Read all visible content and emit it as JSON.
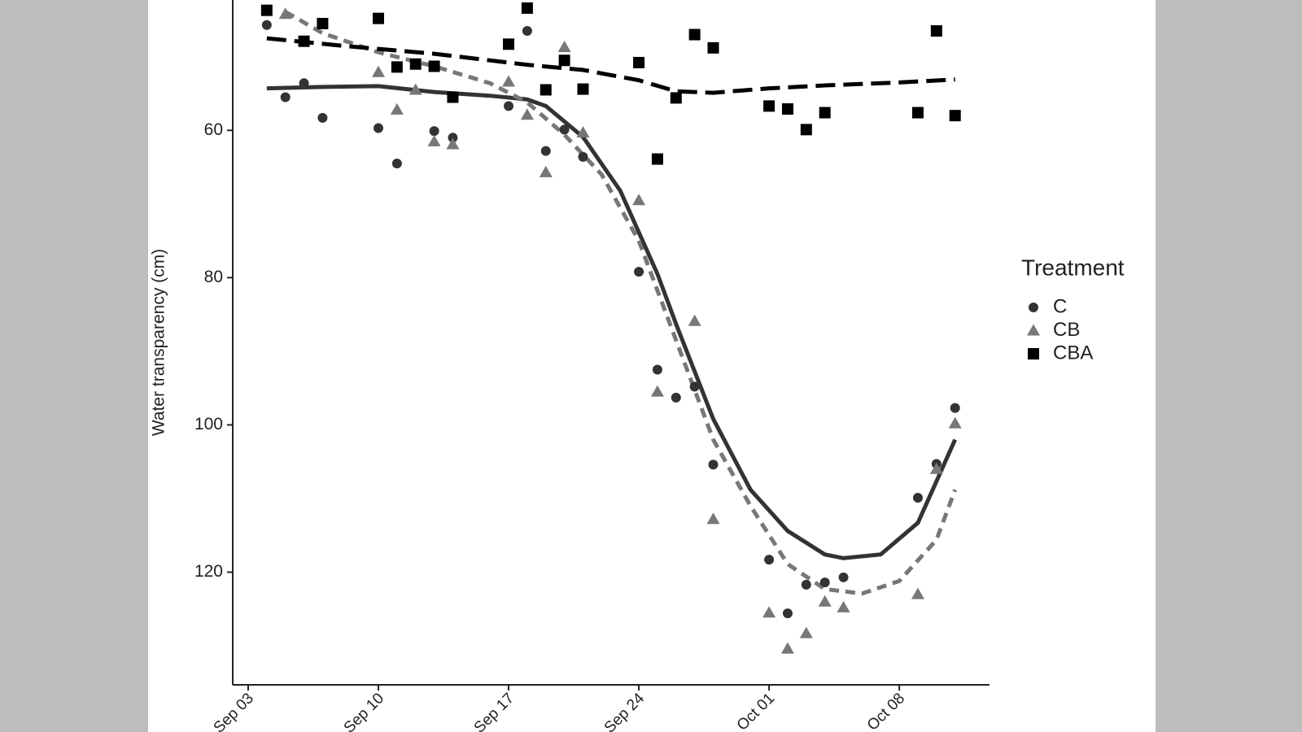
{
  "chart_data": {
    "type": "scatter",
    "y_label": "Water transparency (cm)",
    "legend_title": "Treatment",
    "legend_position": "right",
    "y_reversed": true,
    "xlim": [
      -0.83,
      39.85
    ],
    "ylim": [
      42.3,
      135.3
    ],
    "xticks": [
      {
        "value": 0,
        "label": "Sep 03"
      },
      {
        "value": 7,
        "label": "Sep 10"
      },
      {
        "value": 14,
        "label": "Sep 17"
      },
      {
        "value": 21,
        "label": "Sep 24"
      },
      {
        "value": 28,
        "label": "Oct 01"
      },
      {
        "value": 35,
        "label": "Oct 08"
      }
    ],
    "yticks": [
      60,
      80,
      100,
      120
    ],
    "series": [
      {
        "name": "C",
        "color": "#333333",
        "marker": "circle",
        "dash": "none",
        "x": [
          1,
          2,
          3,
          4,
          7,
          8,
          10,
          11,
          14,
          15,
          16,
          17,
          18,
          21,
          22,
          23,
          24,
          25,
          28,
          29,
          30,
          31,
          32,
          36,
          37,
          38
        ],
        "values": [
          45.7,
          55.5,
          53.6,
          58.3,
          59.7,
          64.5,
          60.1,
          61.0,
          56.7,
          46.5,
          62.8,
          59.9,
          63.6,
          79.2,
          92.5,
          96.3,
          94.8,
          105.4,
          118.3,
          125.6,
          121.7,
          121.4,
          120.7,
          109.9,
          105.3,
          97.7
        ],
        "smooth": {
          "x": [
            1,
            4,
            7,
            10,
            13,
            15,
            16,
            18,
            20,
            22,
            23,
            25,
            27,
            29,
            31,
            32,
            34,
            36,
            38
          ],
          "values": [
            54.3,
            54.1,
            54.0,
            54.8,
            55.3,
            55.8,
            56.7,
            60.9,
            68.2,
            79.5,
            86.3,
            99.2,
            108.8,
            114.4,
            117.6,
            118.1,
            117.6,
            113.3,
            102.0
          ]
        }
      },
      {
        "name": "CB",
        "color": "#777777",
        "marker": "triangle",
        "dash": "12 8",
        "x": [
          2,
          7,
          8,
          9,
          10,
          11,
          14,
          15,
          16,
          17,
          18,
          21,
          22,
          24,
          25,
          28,
          29,
          30,
          31,
          32,
          36,
          37,
          38
        ],
        "values": [
          44.2,
          52.1,
          57.2,
          54.5,
          61.5,
          61.9,
          53.4,
          57.9,
          65.7,
          48.7,
          60.3,
          69.5,
          95.5,
          85.9,
          112.8,
          125.5,
          130.4,
          128.3,
          124.0,
          124.8,
          123.0,
          106.0,
          99.8
        ],
        "smooth": {
          "x": [
            2,
            4,
            7,
            10,
            13,
            15,
            17,
            19,
            21,
            23,
            25,
            27,
            29,
            31,
            33,
            35,
            37,
            38
          ],
          "values": [
            43.9,
            46.8,
            49.4,
            51.3,
            53.6,
            56.2,
            60.6,
            66.0,
            75.0,
            88.5,
            102.0,
            111.0,
            118.9,
            122.3,
            122.9,
            121.2,
            115.6,
            108.8
          ]
        }
      },
      {
        "name": "CBA",
        "color": "#000000",
        "marker": "square",
        "dash": "24 10",
        "x": [
          1,
          3,
          4,
          7,
          8,
          9,
          10,
          11,
          14,
          15,
          16,
          17,
          18,
          21,
          22,
          23,
          24,
          25,
          28,
          29,
          30,
          31,
          36,
          37,
          38
        ],
        "values": [
          43.7,
          47.9,
          45.5,
          44.8,
          51.4,
          51.0,
          51.3,
          55.5,
          48.3,
          43.4,
          54.5,
          50.5,
          54.4,
          50.8,
          63.9,
          55.6,
          47.0,
          48.8,
          56.7,
          57.1,
          59.9,
          57.6,
          57.6,
          46.5,
          58.0
        ],
        "smooth": {
          "x": [
            1,
            5,
            10,
            15,
            18,
            21,
            23,
            25,
            28,
            31,
            35,
            38
          ],
          "values": [
            47.5,
            48.5,
            49.6,
            51.1,
            51.8,
            53.2,
            54.7,
            54.9,
            54.3,
            53.9,
            53.5,
            53.1
          ]
        }
      }
    ]
  }
}
